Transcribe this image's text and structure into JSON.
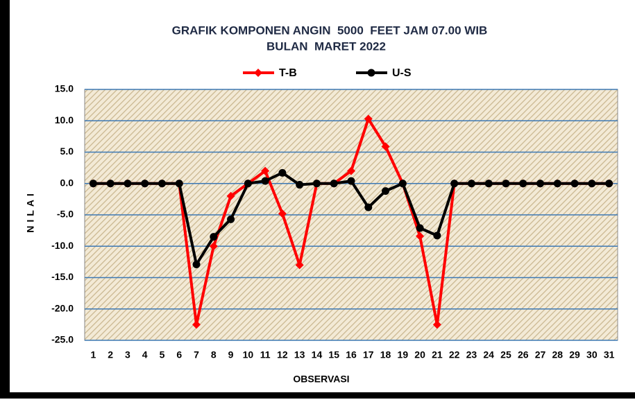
{
  "chart_data": {
    "type": "line",
    "title": "GRAFIK KOMPONEN ANGIN  5000  FEET JAM 07.00 WIB",
    "subtitle": "BULAN  MARET 2022",
    "x_label": "OBSERVASI",
    "y_label": "NILAI",
    "categories": [
      "1",
      "2",
      "3",
      "4",
      "5",
      "6",
      "7",
      "8",
      "9",
      "10",
      "11",
      "12",
      "13",
      "14",
      "15",
      "16",
      "17",
      "18",
      "19",
      "20",
      "21",
      "22",
      "23",
      "24",
      "25",
      "26",
      "27",
      "28",
      "29",
      "30",
      "31"
    ],
    "series": [
      {
        "name": "T-B",
        "color": "#ff0000",
        "marker": "diamond",
        "values": [
          0,
          0,
          0,
          0,
          0,
          0,
          -22.5,
          -10,
          -2,
          0,
          2,
          -4.8,
          -13,
          0,
          0,
          2,
          10.3,
          5.9,
          0,
          -8.4,
          -22.5,
          0,
          0,
          0,
          0,
          0,
          0,
          0,
          0,
          0,
          0
        ]
      },
      {
        "name": "U-S",
        "color": "#000000",
        "marker": "circle",
        "values": [
          0,
          0,
          0,
          0,
          0,
          0,
          -12.9,
          -8.5,
          -5.7,
          0,
          0.4,
          1.7,
          -0.2,
          0,
          0,
          0.4,
          -3.8,
          -1.2,
          0,
          -7.1,
          -8.3,
          0,
          0,
          0,
          0,
          0,
          0,
          0,
          0,
          0,
          0
        ]
      }
    ],
    "ylim": [
      -25,
      15
    ],
    "yticks": [
      {
        "value": -25,
        "label": "-25.0"
      },
      {
        "value": -20,
        "label": "-20.0"
      },
      {
        "value": -15,
        "label": "-15.0"
      },
      {
        "value": -10,
        "label": "-10.0"
      },
      {
        "value": -5,
        "label": "-5.0"
      },
      {
        "value": 0,
        "label": "0.0"
      },
      {
        "value": 5,
        "label": "5.0"
      },
      {
        "value": 10,
        "label": "10.0"
      },
      {
        "value": 15,
        "label": "15.0"
      }
    ],
    "grid": true,
    "legend": "top"
  }
}
